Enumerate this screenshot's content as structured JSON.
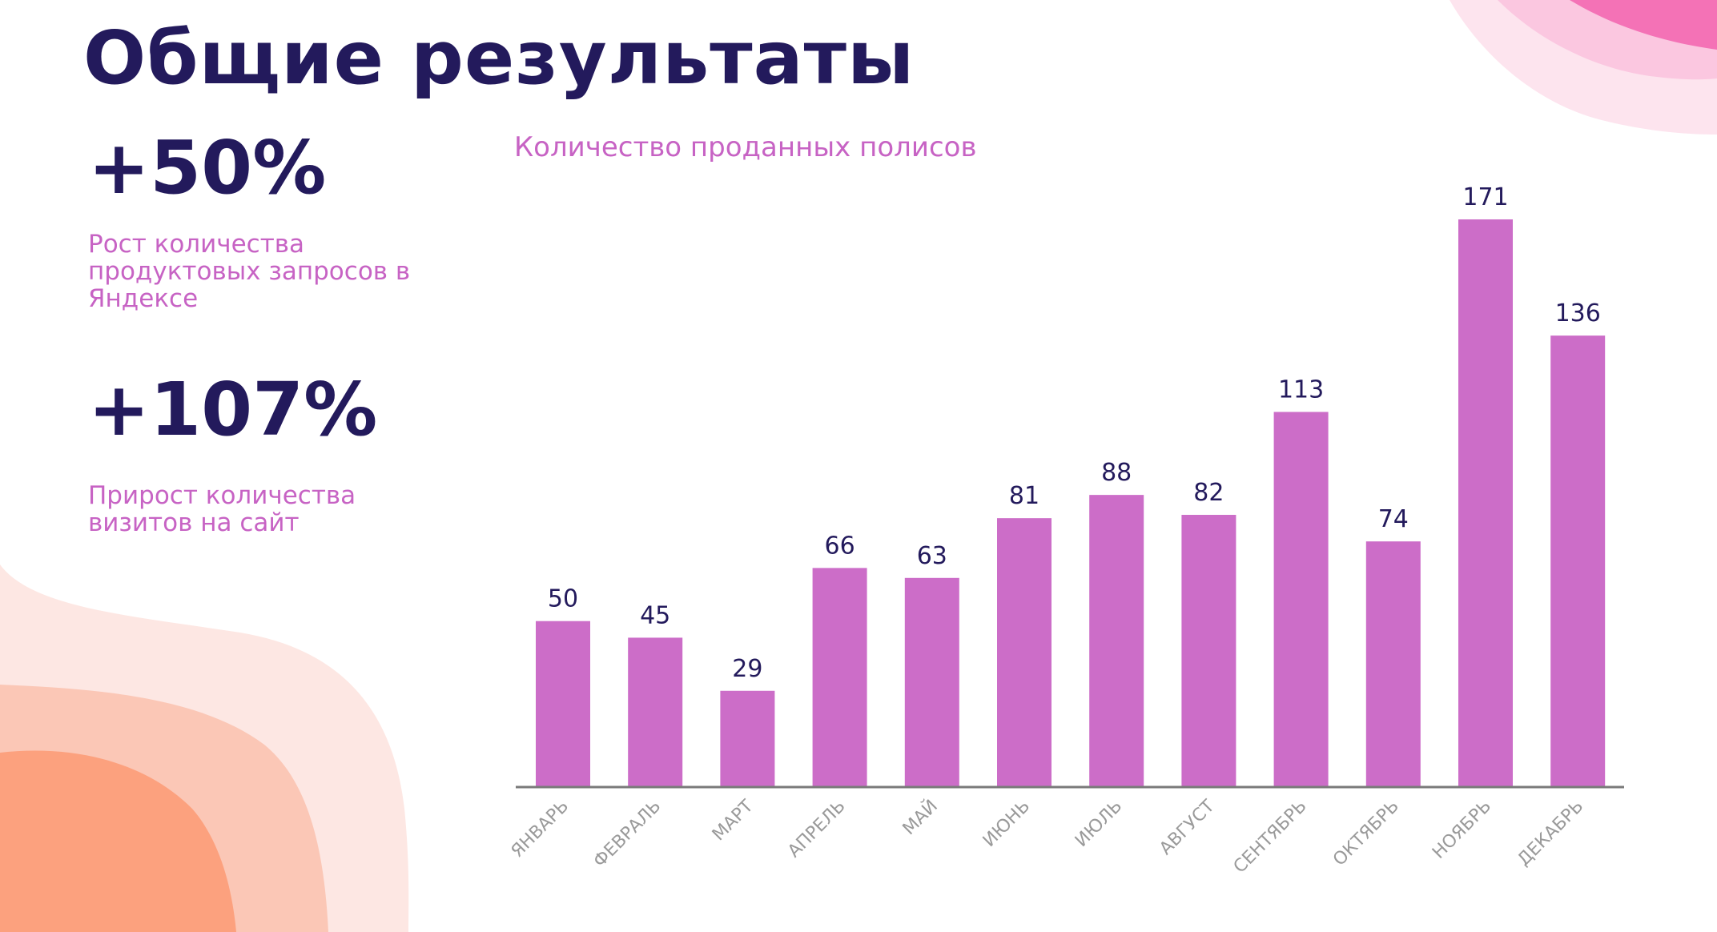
{
  "page": {
    "title": "Общие результаты"
  },
  "stats": [
    {
      "value": "+50%",
      "description": "Рост количества продуктовых запросов в Яндексе"
    },
    {
      "value": "+107%",
      "description": "Прирост количества визитов на сайт"
    }
  ],
  "chart_data": {
    "type": "bar",
    "title": "Количество проданных полисов",
    "categories": [
      "ЯНВАРЬ",
      "ФЕВРАЛЬ",
      "МАРТ",
      "АПРЕЛЬ",
      "МАЙ",
      "ИЮНЬ",
      "ИЮЛЬ",
      "АВГУСТ",
      "СЕНТЯБРЬ",
      "ОКТЯБРЬ",
      "НОЯБРЬ",
      "ДЕКАБРЬ"
    ],
    "values": [
      50,
      45,
      29,
      66,
      63,
      81,
      88,
      82,
      113,
      74,
      171,
      136
    ],
    "ylim": [
      0,
      171
    ],
    "grid": false,
    "data_labels": true,
    "bar_color": "#cc6dc8",
    "axis_color": "#7a7a7a",
    "label_color": "#231a5c",
    "tick_color": "#9a9a9a"
  },
  "colors": {
    "title": "#231a5c",
    "accent": "#c763c4"
  }
}
